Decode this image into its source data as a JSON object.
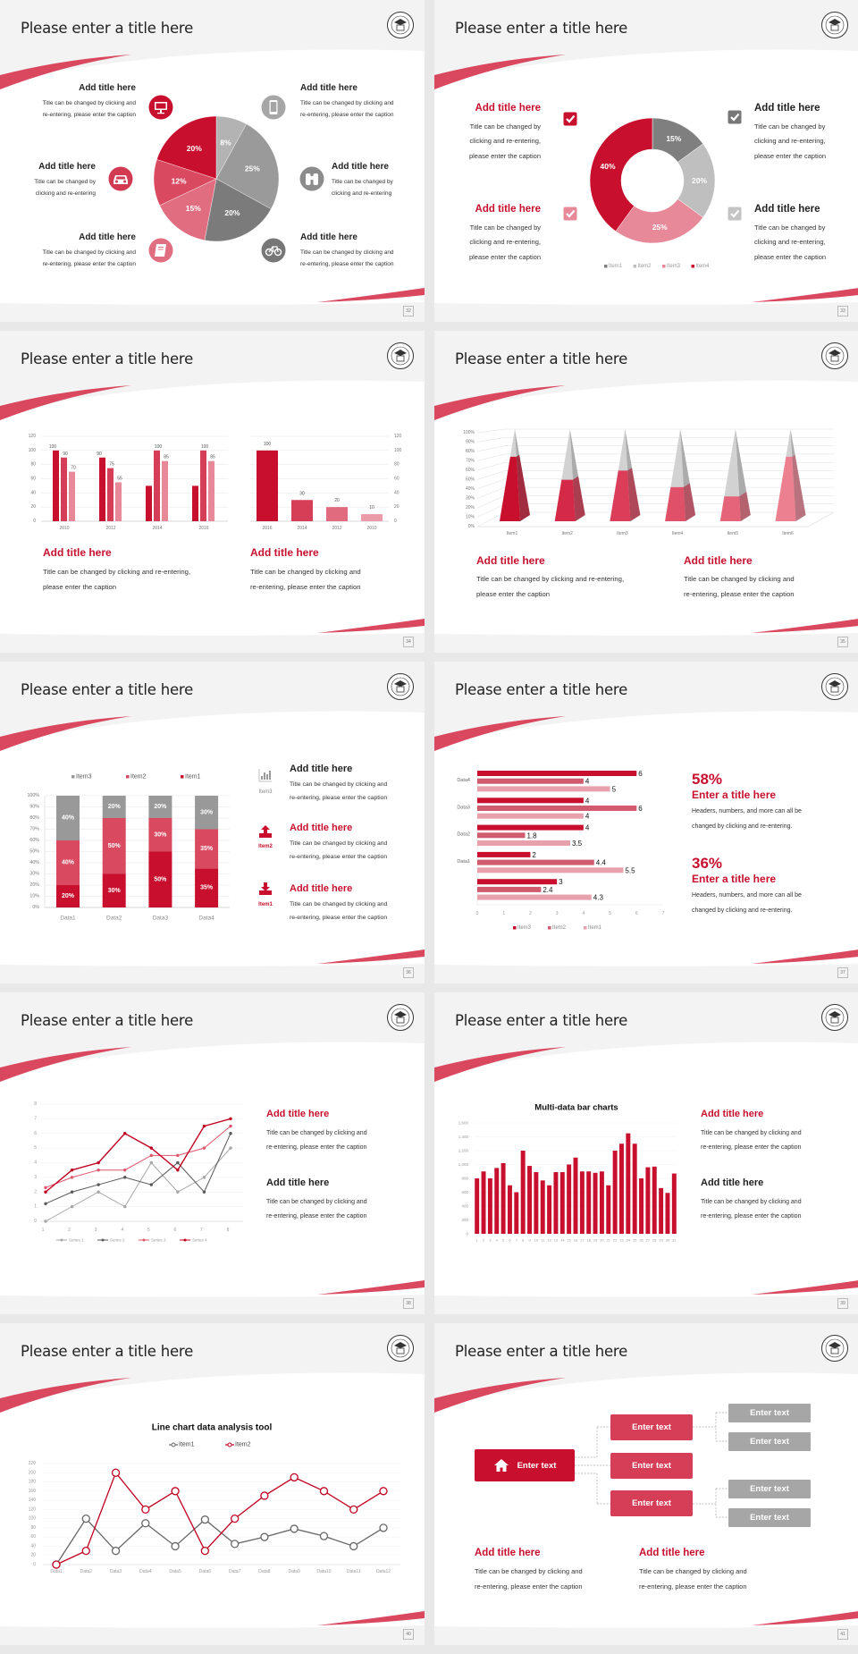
{
  "slides": [
    {
      "title": "Please enter a title here",
      "page": "32",
      "icons": [
        "monitor-icon",
        "car-icon",
        "book-icon",
        "phone-icon",
        "binoculars-icon",
        "bicycle-icon"
      ],
      "blocks": [
        {
          "title": "Add title here",
          "lines": [
            "Title can be changed by clicking and",
            "re-entering, please enter the caption"
          ]
        },
        {
          "title": "Add title here",
          "lines": [
            "Title can be changed by",
            "clicking and re-entering"
          ]
        },
        {
          "title": "Add title here",
          "lines": [
            "Title can be changed by clicking and",
            "re-entering, please enter the caption"
          ]
        },
        {
          "title": "Add title here",
          "lines": [
            "Title can be changed by clicking and",
            "re-entering, please enter the caption"
          ]
        },
        {
          "title": "Add title here",
          "lines": [
            "Title can be changed by",
            "clicking and re-entering"
          ]
        },
        {
          "title": "Add title here",
          "lines": [
            "Title can be changed by clicking and",
            "re-entering, please enter the caption"
          ]
        }
      ]
    },
    {
      "title": "Please enter a title here",
      "page": "33",
      "blocks": [
        {
          "title": "Add title here",
          "lines": [
            "Title can be changed by",
            "clicking and re-entering,",
            "please enter the caption"
          ]
        },
        {
          "title": "Add title here",
          "lines": [
            "Title can be changed by",
            "clicking and re-entering,",
            "please enter the caption"
          ]
        },
        {
          "title": "Add title here",
          "lines": [
            "Title can be changed by",
            "clicking and re-entering,",
            "please enter the caption"
          ]
        },
        {
          "title": "Add title here",
          "lines": [
            "Title can be changed by",
            "clicking and re-entering,",
            "please enter the caption"
          ]
        }
      ]
    },
    {
      "title": "Please enter a title here",
      "page": "34",
      "blocks": [
        {
          "title": "Add title here",
          "lines": [
            "Title can be changed by clicking and re-entering,",
            "please enter the caption"
          ]
        },
        {
          "title": "Add title here",
          "lines": [
            "Title can be changed by clicking and",
            "re-entering, please enter the caption"
          ]
        }
      ]
    },
    {
      "title": "Please enter a title here",
      "page": "35",
      "blocks": [
        {
          "title": "Add title here",
          "lines": [
            "Title can be changed by clicking and re-entering,",
            "please enter the caption"
          ]
        },
        {
          "title": "Add title here",
          "lines": [
            "Title can be changed by clicking and",
            "re-entering, please enter the caption"
          ]
        }
      ]
    },
    {
      "title": "Please enter a title here",
      "page": "36",
      "icon_labels": [
        "Item3",
        "Item2",
        "Item1"
      ],
      "blocks": [
        {
          "title": "Add title here",
          "lines": [
            "Title can be changed by clicking and",
            "re-entering, please enter the caption"
          ]
        },
        {
          "title": "Add title here",
          "lines": [
            "Title can be changed by clicking and",
            "re-entering, please enter the caption"
          ]
        },
        {
          "title": "Add title here",
          "lines": [
            "Title can be changed by clicking and",
            "re-entering, please enter the caption"
          ]
        }
      ]
    },
    {
      "title": "Please enter a title here",
      "page": "37",
      "blocks": [
        {
          "stat": "58%",
          "title": "Enter a title here",
          "lines": [
            "Headers, numbers, and more can all be",
            "changed by clicking and re-entering."
          ]
        },
        {
          "stat": "36%",
          "title": "Enter a title here",
          "lines": [
            "Headers, numbers, and more can all be",
            "changed by clicking and re-entering."
          ]
        }
      ]
    },
    {
      "title": "Please enter a title here",
      "page": "38",
      "blocks": [
        {
          "title": "Add title here",
          "lines": [
            "Title can be changed by clicking and",
            "re-entering, please enter the caption"
          ]
        },
        {
          "title": "Add title here",
          "lines": [
            "Title can be changed by clicking and",
            "re-entering, please enter the caption"
          ]
        }
      ]
    },
    {
      "title": "Please enter a title here",
      "page": "39",
      "blocks": [
        {
          "title": "Add title here",
          "lines": [
            "Title can be changed by clicking and",
            "re-entering, please enter the caption"
          ]
        },
        {
          "title": "Add title here",
          "lines": [
            "Title can be changed by clicking and",
            "re-entering, please enter the caption"
          ]
        }
      ]
    },
    {
      "title": "Please enter a title here",
      "page": "40",
      "blocks": []
    },
    {
      "title": "Please enter a title here",
      "page": "41",
      "diagram": {
        "root": "Enter text",
        "mid": [
          "Enter text",
          "Enter text",
          "Enter text"
        ],
        "leaves": [
          "Enter text",
          "Enter text",
          "Enter text",
          "Enter text"
        ]
      },
      "blocks": [
        {
          "title": "Add title here",
          "lines": [
            "Title can be changed by clicking and",
            "re-entering, please enter the caption"
          ]
        },
        {
          "title": "Add title here",
          "lines": [
            "Title can be changed by clicking and",
            "re-entering, please enter the caption"
          ]
        }
      ]
    }
  ],
  "colors": {
    "accent": "#c8102e",
    "pink": "#d63e57",
    "light_pink": "#e8899a",
    "gray": "#a6a6a6",
    "dark_gray": "#595959"
  },
  "chart_data": [
    {
      "type": "pie",
      "values": [
        8,
        25,
        20,
        15,
        12,
        20
      ],
      "labels": [
        "8%",
        "25%",
        "20%",
        "15%",
        "12%",
        "20%"
      ],
      "colors": [
        "#b3b3b3",
        "#9a9a9a",
        "#7b7b7b",
        "#e06e80",
        "#d94a61",
        "#c8102e"
      ]
    },
    {
      "type": "pie",
      "variant": "donut",
      "categories": [
        "Item1",
        "Item2",
        "Item3",
        "Item4"
      ],
      "values": [
        15,
        20,
        25,
        40
      ],
      "labels": [
        "15%",
        "20%",
        "25%",
        "40%"
      ],
      "colors": [
        "#7f7f7f",
        "#bfbfbf",
        "#e8899a",
        "#c8102e"
      ],
      "legend": "bottom"
    },
    {
      "type": "bar",
      "categories": [
        "2010",
        "2012",
        "2014",
        "2016"
      ],
      "ylim": [
        0,
        120
      ],
      "ytick_labels": [
        "0",
        "20",
        "40",
        "60",
        "80",
        "100",
        "120"
      ],
      "grid": true,
      "series": [
        {
          "values": [
            100,
            90,
            50,
            50
          ],
          "data_labels": [
            "100",
            "90",
            "",
            ""
          ],
          "color": "#c8102e"
        },
        {
          "values": [
            90,
            75,
            100,
            100
          ],
          "data_labels": [
            "90",
            "75",
            "100",
            "100"
          ],
          "color": "#d63e57"
        },
        {
          "values": [
            70,
            55,
            85,
            85
          ],
          "data_labels": [
            "70",
            "55",
            "85",
            "85"
          ],
          "color": "#e8899a"
        }
      ]
    },
    {
      "type": "bar",
      "categories": [
        "2016",
        "2014",
        "2012",
        "2010"
      ],
      "values": [
        100,
        30,
        20,
        10
      ],
      "data_labels": [
        "100",
        "30",
        "20",
        "10"
      ],
      "ylim": [
        0,
        120
      ],
      "ytick_labels": [
        "0",
        "20",
        "40",
        "60",
        "80",
        "100",
        "120"
      ],
      "axis": "right",
      "grid": true,
      "colors": [
        "#c8102e",
        "#d63e57",
        "#e06a7e",
        "#eb9aa8"
      ]
    },
    {
      "type": "bar",
      "variant": "3d-pyramid",
      "categories": [
        "Item1",
        "Item2",
        "Item3",
        "Item4",
        "Item5",
        "Item6"
      ],
      "values": [
        70,
        45,
        55,
        37,
        27,
        70
      ],
      "ylim": [
        0,
        100
      ],
      "ytick_labels": [
        "0%",
        "10%",
        "20%",
        "30%",
        "40%",
        "50%",
        "60%",
        "70%",
        "80%",
        "90%",
        "100%"
      ],
      "colors": [
        "#c8102e",
        "#d42a47",
        "#dc3d58",
        "#e05068",
        "#e66479",
        "#ec8090"
      ]
    },
    {
      "type": "bar",
      "variant": "stacked-100",
      "categories": [
        "Data1",
        "Data2",
        "Data3",
        "Data4"
      ],
      "legend": "top",
      "ytick_labels": [
        "0%",
        "10%",
        "20%",
        "30%",
        "40%",
        "50%",
        "60%",
        "70%",
        "80%",
        "90%",
        "100%"
      ],
      "series": [
        {
          "name": "Item1",
          "values": [
            20,
            30,
            50,
            35
          ],
          "data_labels": [
            "20%",
            "30%",
            "50%",
            "35%"
          ],
          "color": "#c8102e"
        },
        {
          "name": "Item2",
          "values": [
            40,
            50,
            30,
            35
          ],
          "data_labels": [
            "40%",
            "50%",
            "30%",
            "35%"
          ],
          "color": "#d94a61"
        },
        {
          "name": "Item3",
          "values": [
            40,
            20,
            20,
            30
          ],
          "data_labels": [
            "40%",
            "20%",
            "20%",
            "30%"
          ],
          "color": "#999999"
        }
      ]
    },
    {
      "type": "bar",
      "orientation": "horizontal",
      "categories": [
        "Data4",
        "Data3",
        "Data2",
        "Data1",
        ""
      ],
      "xlim": [
        0,
        7
      ],
      "xtick_labels": [
        "0",
        "1",
        "2",
        "3",
        "4",
        "5",
        "6",
        "7"
      ],
      "legend": "bottom",
      "series": [
        {
          "name": "Item3",
          "values": [
            6,
            4,
            4,
            2,
            3
          ],
          "data_labels": [
            "6",
            "4",
            "4",
            "2",
            "3"
          ],
          "color": "#c8102e"
        },
        {
          "name": "Item2",
          "values": [
            4,
            6,
            1.8,
            4.4,
            2.4
          ],
          "data_labels": [
            "4",
            "6",
            "1.8",
            "4.4",
            "2.4"
          ],
          "color": "#d05a6e"
        },
        {
          "name": "Item1",
          "values": [
            5,
            4,
            3.5,
            5.5,
            4.3
          ],
          "data_labels": [
            "5",
            "4",
            "3.5",
            "5.5",
            "4.3"
          ],
          "color": "#e8a0ac"
        }
      ]
    },
    {
      "type": "line",
      "x": [
        "1",
        "2",
        "3",
        "4",
        "5",
        "6",
        "7",
        "8"
      ],
      "ylim": [
        0,
        8
      ],
      "ytick_labels": [
        "0",
        "1",
        "2",
        "3",
        "4",
        "5",
        "6",
        "7",
        "8"
      ],
      "legend": "bottom",
      "series": [
        {
          "name": "Series 1",
          "values": [
            0,
            1,
            2,
            1,
            4,
            2,
            3,
            5
          ],
          "color": "#a6a6a6"
        },
        {
          "name": "Series 2",
          "values": [
            1.2,
            2,
            2.5,
            3,
            2.5,
            4,
            2,
            6
          ],
          "color": "#595959"
        },
        {
          "name": "Series 3",
          "values": [
            2.3,
            3,
            3.5,
            3.5,
            4.5,
            4.5,
            5,
            6.5
          ],
          "color": "#e0556d"
        },
        {
          "name": "Series 4",
          "values": [
            2,
            3.5,
            4,
            6,
            5,
            3.5,
            6.5,
            7
          ],
          "color": "#c00020"
        }
      ]
    },
    {
      "type": "bar",
      "title": "Multi-data bar charts",
      "categories": [
        "1",
        "2",
        "3",
        "4",
        "5",
        "6",
        "7",
        "8",
        "9",
        "10",
        "11",
        "12",
        "13",
        "14",
        "15",
        "16",
        "17",
        "18",
        "19",
        "20",
        "21",
        "22",
        "23",
        "24",
        "25",
        "26",
        "27",
        "28",
        "29",
        "30",
        "31"
      ],
      "values": [
        800,
        900,
        800,
        950,
        1020,
        700,
        600,
        1200,
        980,
        890,
        770,
        700,
        890,
        890,
        1000,
        1100,
        900,
        900,
        880,
        900,
        700,
        1200,
        1300,
        1450,
        1300,
        800,
        960,
        970,
        660,
        590,
        870
      ],
      "ylim": [
        0,
        1600
      ],
      "ytick_labels": [
        "0",
        "200",
        "400",
        "600",
        "800",
        "1,000",
        "1,200",
        "1,400",
        "1,600"
      ],
      "color": "#c8102e"
    },
    {
      "type": "line",
      "title": "Line chart data analysis tool",
      "categories": [
        "Data1",
        "Data2",
        "Data3",
        "Data4",
        "Data5",
        "Data6",
        "Data7",
        "Data8",
        "Data9",
        "Data10",
        "Data11",
        "Data12"
      ],
      "ylim": [
        0,
        220
      ],
      "ytick_labels": [
        "0",
        "20",
        "40",
        "60",
        "80",
        "100",
        "120",
        "140",
        "160",
        "180",
        "200",
        "220"
      ],
      "legend": "top",
      "series": [
        {
          "name": "Item1",
          "values": [
            0,
            100,
            30,
            90,
            40,
            98,
            45,
            60,
            78,
            62,
            40,
            80
          ],
          "color": "#666666"
        },
        {
          "name": "Item2",
          "values": [
            0,
            30,
            200,
            120,
            160,
            30,
            100,
            150,
            190,
            160,
            120,
            160
          ],
          "color": "#c00020"
        }
      ]
    }
  ]
}
